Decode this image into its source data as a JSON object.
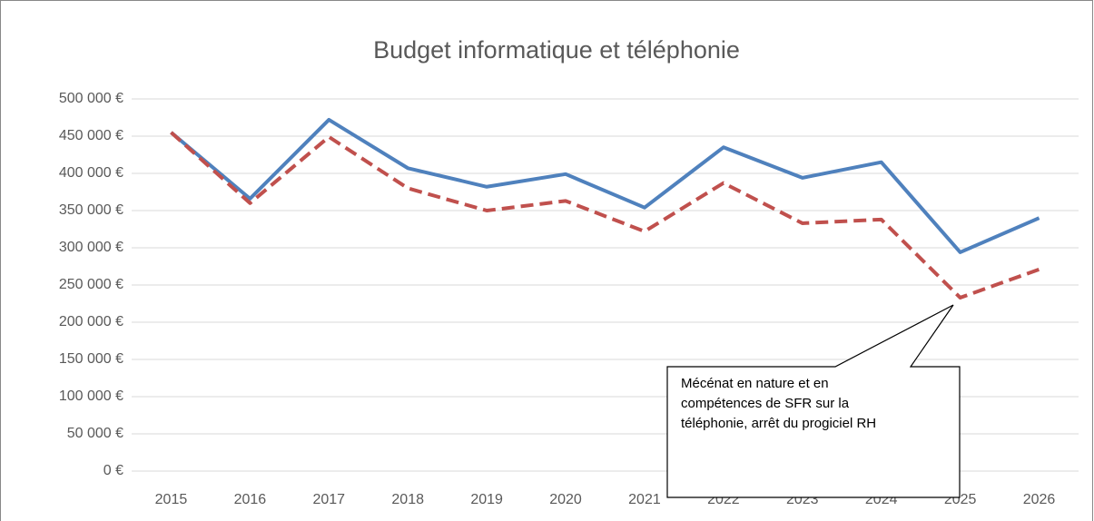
{
  "chart_data": {
    "type": "line",
    "title": "Budget informatique et téléphonie",
    "categories": [
      "2015",
      "2016",
      "2017",
      "2018",
      "2019",
      "2020",
      "2021",
      "2022",
      "2023",
      "2024",
      "2025",
      "2026"
    ],
    "series": [
      {
        "color": "#4f81bd",
        "dash": false,
        "values": [
          455000,
          366000,
          472000,
          407000,
          382000,
          399000,
          354000,
          435000,
          394000,
          415000,
          294000,
          340000
        ]
      },
      {
        "color": "#c0504d",
        "dash": true,
        "values": [
          455000,
          360000,
          449000,
          380000,
          350000,
          363000,
          322000,
          387000,
          333000,
          338000,
          233000,
          271000
        ]
      }
    ],
    "ylim": [
      0,
      500000
    ],
    "yticks": [
      {
        "value": 0,
        "label": "0 €"
      },
      {
        "value": 50000,
        "label": "50 000 €"
      },
      {
        "value": 100000,
        "label": "100 000 €"
      },
      {
        "value": 150000,
        "label": "150 000 €"
      },
      {
        "value": 200000,
        "label": "200 000 €"
      },
      {
        "value": 250000,
        "label": "250 000 €"
      },
      {
        "value": 300000,
        "label": "300 000 €"
      },
      {
        "value": 350000,
        "label": "350 000 €"
      },
      {
        "value": 400000,
        "label": "400 000 €"
      },
      {
        "value": 450000,
        "label": "450 000 €"
      },
      {
        "value": 500000,
        "label": "500 000 €"
      }
    ],
    "grid": true,
    "annotation": "Mécénat en nature et en compétences de SFR sur la téléphonie, arrêt du progiciel RH"
  }
}
